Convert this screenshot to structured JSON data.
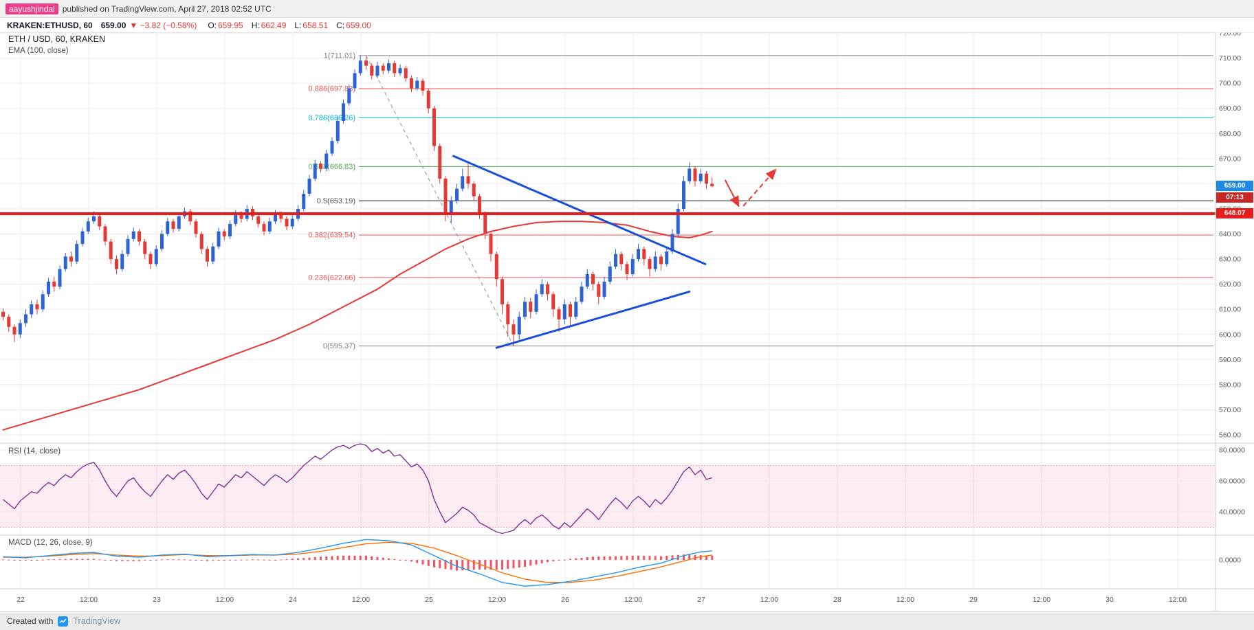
{
  "header": {
    "author": "aayushjindal",
    "published": "published on TradingView.com, April 27, 2018 02:52 UTC"
  },
  "symbol_bar": {
    "symbol": "KRAKEN:ETHUSD, 60",
    "last": "659.00",
    "change": "▼ −3.82 (−0.58%)",
    "ohlc": [
      {
        "k": "O:",
        "v": "659.95"
      },
      {
        "k": "H:",
        "v": "662.49"
      },
      {
        "k": "L:",
        "v": "658.51"
      },
      {
        "k": "C:",
        "v": "659.00"
      }
    ]
  },
  "legends": {
    "main": "ETH / USD, 60, KRAKEN",
    "ema": "EMA (100, close)",
    "rsi": "RSI (14, close)",
    "macd": "MACD (12, 26, close, 9)"
  },
  "price_tags": {
    "last": {
      "text": "659.00",
      "color": "#1e88e5"
    },
    "countdown": {
      "text": "07:13",
      "color": "#c62828"
    },
    "hline": {
      "text": "648.07",
      "color": "#e91c1c"
    }
  },
  "footer": {
    "created_with": "Created with",
    "brand": "TradingView"
  },
  "chart_data": {
    "type": "candlestick",
    "symbol": "ETH / USD",
    "exchange": "KRAKEN",
    "interval": "60",
    "ylim": [
      560,
      720
    ],
    "axes": {
      "price_ticks": [
        "720.00",
        "710.00",
        "700.00",
        "690.00",
        "680.00",
        "670.00",
        "660.00",
        "650.00",
        "640.00",
        "630.00",
        "620.00",
        "610.00",
        "600.00",
        "590.00",
        "580.00",
        "570.00",
        "560.00"
      ],
      "time_ticks": [
        "22",
        "12:00",
        "23",
        "12:00",
        "24",
        "12:00",
        "25",
        "12:00",
        "26",
        "12:00",
        "27",
        "12:00",
        "28",
        "12:00",
        "29",
        "12:00",
        "30",
        "12:00"
      ],
      "rsi_ticks": [
        "80.0000",
        "60.0000",
        "40.0000"
      ],
      "macd_ticks": [
        "0.0000"
      ]
    },
    "candles": [
      [
        609,
        610.5,
        605.5,
        607
      ],
      [
        607,
        608,
        601,
        603
      ],
      [
        603,
        604,
        597,
        600
      ],
      [
        600,
        606,
        598.5,
        604.5
      ],
      [
        604.5,
        610,
        603,
        608
      ],
      [
        608,
        613.5,
        606.5,
        612
      ],
      [
        612,
        614,
        608,
        610
      ],
      [
        610,
        617.5,
        609,
        616
      ],
      [
        616,
        622.5,
        615,
        621
      ],
      [
        621,
        623,
        617,
        619
      ],
      [
        619,
        627.5,
        618,
        626
      ],
      [
        626,
        632.5,
        625,
        631
      ],
      [
        631,
        633,
        627,
        629
      ],
      [
        629,
        637.5,
        628,
        636
      ],
      [
        636,
        642.5,
        635,
        641
      ],
      [
        641,
        646.5,
        640,
        645
      ],
      [
        645,
        649,
        644,
        647
      ],
      [
        647,
        648,
        641.5,
        643
      ],
      [
        643,
        644,
        635.5,
        637
      ],
      [
        637,
        638,
        628,
        630
      ],
      [
        630,
        631.5,
        624,
        626
      ],
      [
        626,
        633.5,
        625,
        632
      ],
      [
        632,
        639.5,
        631,
        638
      ],
      [
        638,
        642.5,
        637,
        641
      ],
      [
        641,
        642,
        635.5,
        637
      ],
      [
        637,
        638,
        630,
        632
      ],
      [
        632,
        633,
        626,
        628
      ],
      [
        628,
        635.5,
        627,
        634
      ],
      [
        634,
        641.5,
        633,
        640
      ],
      [
        640,
        646.5,
        639,
        645
      ],
      [
        645,
        646,
        640.5,
        642
      ],
      [
        642,
        648.5,
        641,
        647
      ],
      [
        647,
        650.5,
        646,
        649
      ],
      [
        649,
        650,
        643.5,
        645
      ],
      [
        645,
        646,
        638.5,
        640
      ],
      [
        640,
        641,
        632,
        634
      ],
      [
        634,
        635,
        627,
        629
      ],
      [
        629,
        636.5,
        628,
        635
      ],
      [
        635,
        642.5,
        634,
        641
      ],
      [
        641,
        642,
        637.5,
        639
      ],
      [
        639,
        645.5,
        638,
        644
      ],
      [
        644,
        649.5,
        643,
        648
      ],
      [
        648,
        649,
        644.5,
        646
      ],
      [
        646,
        651.5,
        645,
        650
      ],
      [
        650,
        651,
        645.5,
        647
      ],
      [
        647,
        648,
        642.5,
        644
      ],
      [
        644,
        645,
        639.5,
        641
      ],
      [
        641,
        646.5,
        640,
        645
      ],
      [
        645,
        649.5,
        644,
        648
      ],
      [
        648,
        649,
        644.5,
        646
      ],
      [
        646,
        647,
        641.5,
        643
      ],
      [
        643,
        647.5,
        642,
        646
      ],
      [
        646,
        651.5,
        645,
        650
      ],
      [
        650,
        657.5,
        649,
        656
      ],
      [
        656,
        663.5,
        655,
        662
      ],
      [
        662,
        669.5,
        661,
        668
      ],
      [
        668,
        669,
        664.5,
        666
      ],
      [
        666,
        673.5,
        665,
        672
      ],
      [
        672,
        678.5,
        671,
        677
      ],
      [
        677,
        686.5,
        676,
        685
      ],
      [
        685,
        693.5,
        684,
        692
      ],
      [
        692,
        699.5,
        691,
        698
      ],
      [
        698,
        705.5,
        697,
        704
      ],
      [
        704,
        711.01,
        703,
        709
      ],
      [
        709,
        710.5,
        705.5,
        707
      ],
      [
        707,
        708,
        701.5,
        703
      ],
      [
        703,
        708.5,
        702,
        707
      ],
      [
        707,
        708,
        703.5,
        705
      ],
      [
        705,
        709.5,
        704,
        708
      ],
      [
        708,
        709,
        702.5,
        704
      ],
      [
        704,
        707.5,
        703,
        706
      ],
      [
        706,
        707,
        700.5,
        702
      ],
      [
        702,
        703,
        696.5,
        698
      ],
      [
        698,
        702.5,
        697,
        701
      ],
      [
        701,
        702,
        695,
        697
      ],
      [
        697,
        698,
        688,
        690
      ],
      [
        690,
        691,
        673,
        675
      ],
      [
        675,
        676,
        660,
        662
      ],
      [
        662,
        663,
        645,
        648
      ],
      [
        648,
        655,
        644.5,
        653
      ],
      [
        653,
        660,
        652,
        658
      ],
      [
        658,
        666,
        657,
        663
      ],
      [
        663,
        668,
        658,
        660
      ],
      [
        660,
        661,
        653,
        655
      ],
      [
        655,
        656,
        646,
        648
      ],
      [
        648,
        649,
        638,
        640
      ],
      [
        640,
        641,
        629,
        632
      ],
      [
        632,
        633,
        619,
        622
      ],
      [
        622,
        623,
        608,
        612
      ],
      [
        612,
        613,
        599,
        604
      ],
      [
        604,
        606,
        595.37,
        600
      ],
      [
        600,
        609,
        598,
        607
      ],
      [
        607,
        615,
        606,
        613
      ],
      [
        613,
        614.5,
        606.5,
        609
      ],
      [
        609,
        618,
        608,
        616
      ],
      [
        616,
        622,
        615,
        620
      ],
      [
        620,
        621,
        613.5,
        616
      ],
      [
        616,
        617,
        607,
        610
      ],
      [
        610,
        611,
        601,
        606
      ],
      [
        606,
        614,
        604,
        612
      ],
      [
        612,
        613,
        603,
        607
      ],
      [
        607,
        615,
        606,
        613
      ],
      [
        613,
        621,
        612,
        619
      ],
      [
        619,
        626,
        618,
        624
      ],
      [
        624,
        625,
        617.5,
        620
      ],
      [
        620,
        621,
        612,
        615
      ],
      [
        615,
        623,
        614,
        621
      ],
      [
        621,
        629,
        620,
        627
      ],
      [
        627,
        634,
        626,
        632
      ],
      [
        632,
        633,
        625.5,
        628
      ],
      [
        628,
        629,
        621.5,
        624
      ],
      [
        624,
        632,
        623,
        630
      ],
      [
        630,
        636,
        629,
        634
      ],
      [
        634,
        635,
        627.5,
        630
      ],
      [
        630,
        631,
        623,
        626
      ],
      [
        626,
        633,
        625,
        631
      ],
      [
        631,
        632,
        625.5,
        628
      ],
      [
        628,
        635,
        627,
        633
      ],
      [
        633,
        642,
        632,
        640
      ],
      [
        640,
        652,
        639,
        650
      ],
      [
        650,
        663,
        649,
        661
      ],
      [
        661,
        668.5,
        660,
        666
      ],
      [
        666,
        667,
        659,
        661
      ],
      [
        661,
        666,
        660,
        664
      ],
      [
        664,
        665,
        658,
        660
      ],
      [
        659.95,
        662.49,
        658.51,
        659
      ]
    ],
    "ema_100": [
      [
        0,
        562
      ],
      [
        6,
        566
      ],
      [
        12,
        570
      ],
      [
        18,
        574
      ],
      [
        24,
        578
      ],
      [
        30,
        583
      ],
      [
        36,
        588
      ],
      [
        42,
        593
      ],
      [
        48,
        598
      ],
      [
        54,
        604
      ],
      [
        60,
        611
      ],
      [
        66,
        618
      ],
      [
        70,
        624
      ],
      [
        74,
        629
      ],
      [
        78,
        634
      ],
      [
        82,
        638
      ],
      [
        86,
        641
      ],
      [
        90,
        643
      ],
      [
        94,
        644.5
      ],
      [
        98,
        645
      ],
      [
        102,
        645
      ],
      [
        106,
        644.5
      ],
      [
        110,
        643.5
      ],
      [
        114,
        641
      ],
      [
        118,
        639
      ],
      [
        121,
        638.5
      ],
      [
        123,
        639.5
      ],
      [
        125,
        641
      ]
    ],
    "rsi_14": [
      48,
      45,
      42,
      47,
      50,
      53,
      52,
      56,
      59,
      57,
      61,
      64,
      62,
      66,
      69,
      71,
      72,
      67,
      60,
      54,
      50,
      55,
      60,
      62,
      57,
      53,
      50,
      55,
      60,
      64,
      61,
      65,
      67,
      63,
      58,
      52,
      48,
      53,
      58,
      56,
      60,
      64,
      62,
      66,
      63,
      60,
      57,
      61,
      64,
      62,
      59,
      62,
      66,
      70,
      73,
      76,
      74,
      77,
      80,
      82,
      83,
      81,
      83,
      84,
      83,
      79,
      81,
      78,
      80,
      76,
      77,
      73,
      69,
      71,
      67,
      60,
      48,
      40,
      33,
      36,
      39,
      43,
      41,
      38,
      33,
      31,
      29,
      27,
      26,
      27,
      28,
      32,
      35,
      32,
      36,
      38,
      35,
      31,
      29,
      33,
      30,
      34,
      38,
      42,
      39,
      35,
      40,
      45,
      49,
      46,
      42,
      47,
      50,
      47,
      43,
      48,
      45,
      49,
      54,
      60,
      66,
      69,
      64,
      67,
      61,
      62
    ],
    "macd_12_26_9": {
      "macd": [
        [
          0,
          0.6
        ],
        [
          4,
          0.4
        ],
        [
          8,
          0.8
        ],
        [
          12,
          1.2
        ],
        [
          16,
          1.4
        ],
        [
          20,
          0.7
        ],
        [
          24,
          0.5
        ],
        [
          28,
          0.9
        ],
        [
          32,
          1.1
        ],
        [
          36,
          0.6
        ],
        [
          40,
          0.8
        ],
        [
          44,
          1.0
        ],
        [
          48,
          0.9
        ],
        [
          52,
          1.4
        ],
        [
          56,
          2.2
        ],
        [
          60,
          3.1
        ],
        [
          64,
          3.8
        ],
        [
          68,
          3.6
        ],
        [
          72,
          2.8
        ],
        [
          76,
          0.8
        ],
        [
          80,
          -1.2
        ],
        [
          84,
          -2.6
        ],
        [
          88,
          -4.2
        ],
        [
          92,
          -4.9
        ],
        [
          96,
          -4.6
        ],
        [
          100,
          -4.0
        ],
        [
          104,
          -3.2
        ],
        [
          108,
          -2.4
        ],
        [
          112,
          -1.4
        ],
        [
          116,
          -0.6
        ],
        [
          120,
          0.8
        ],
        [
          123,
          1.5
        ],
        [
          125,
          1.7
        ]
      ],
      "signal": [
        [
          0,
          0.5
        ],
        [
          4,
          0.5
        ],
        [
          8,
          0.7
        ],
        [
          12,
          1.0
        ],
        [
          16,
          1.2
        ],
        [
          20,
          0.9
        ],
        [
          24,
          0.7
        ],
        [
          28,
          0.8
        ],
        [
          32,
          1.0
        ],
        [
          36,
          0.8
        ],
        [
          40,
          0.8
        ],
        [
          44,
          0.9
        ],
        [
          48,
          0.9
        ],
        [
          52,
          1.1
        ],
        [
          56,
          1.6
        ],
        [
          60,
          2.3
        ],
        [
          64,
          3.0
        ],
        [
          68,
          3.3
        ],
        [
          72,
          3.1
        ],
        [
          76,
          2.2
        ],
        [
          80,
          0.8
        ],
        [
          84,
          -0.8
        ],
        [
          88,
          -2.4
        ],
        [
          92,
          -3.6
        ],
        [
          96,
          -4.2
        ],
        [
          100,
          -4.2
        ],
        [
          104,
          -3.8
        ],
        [
          108,
          -3.1
        ],
        [
          112,
          -2.2
        ],
        [
          116,
          -1.3
        ],
        [
          120,
          -0.2
        ],
        [
          123,
          0.6
        ],
        [
          125,
          0.9
        ]
      ]
    },
    "fib_retracement": {
      "high": 711.01,
      "low": 595.37,
      "levels": [
        {
          "label": "1(711.01)",
          "price": 711.01,
          "color": "#808080"
        },
        {
          "label": "0.886(697.83)",
          "price": 697.83,
          "color": "#ef5350"
        },
        {
          "label": "0.786(686.26)",
          "price": 686.26,
          "color": "#00bcd4"
        },
        {
          "label": "0.618(666.83)",
          "price": 666.83,
          "color": "#4caf50"
        },
        {
          "label": "0.5(653.19)",
          "price": 653.19,
          "color": "#555555"
        },
        {
          "label": "0.382(639.54)",
          "price": 639.54,
          "color": "#ef5350"
        },
        {
          "label": "0.236(622.66)",
          "price": 622.66,
          "color": "#ef5350"
        },
        {
          "label": "0(595.37)",
          "price": 595.37,
          "color": "#808080"
        }
      ]
    },
    "drawings": {
      "horizontal_line": {
        "price": 648.07,
        "color": "#e91c1c",
        "width": 4
      },
      "fib_baseline": {
        "from": [
          64,
          711.01
        ],
        "to": [
          90,
          595.37
        ]
      },
      "trendlines": [
        {
          "from": [
            79.4,
            671
          ],
          "to": [
            123.8,
            628
          ]
        },
        {
          "from": [
            87,
            594.7
          ],
          "to": [
            121,
            617
          ]
        }
      ],
      "arrows": [
        {
          "from": [
            127.3,
            661.5
          ],
          "to": [
            129.7,
            651.1
          ],
          "dashed": false
        },
        {
          "from": [
            130.5,
            651.1
          ],
          "to": [
            136.2,
            665.6
          ],
          "dashed": true
        }
      ]
    },
    "colors": {
      "up": "#2e63d6",
      "down": "#e53935",
      "ema": "#e53935",
      "trendline": "#1b4fd8",
      "rsi": "#7e2f8f",
      "rsi_band": "#e91e63",
      "macd": "#2196f3",
      "signal": "#ff6d00",
      "hist": "#f23645",
      "grid": "#ececec",
      "axis_text": "#5a5a5a"
    }
  }
}
